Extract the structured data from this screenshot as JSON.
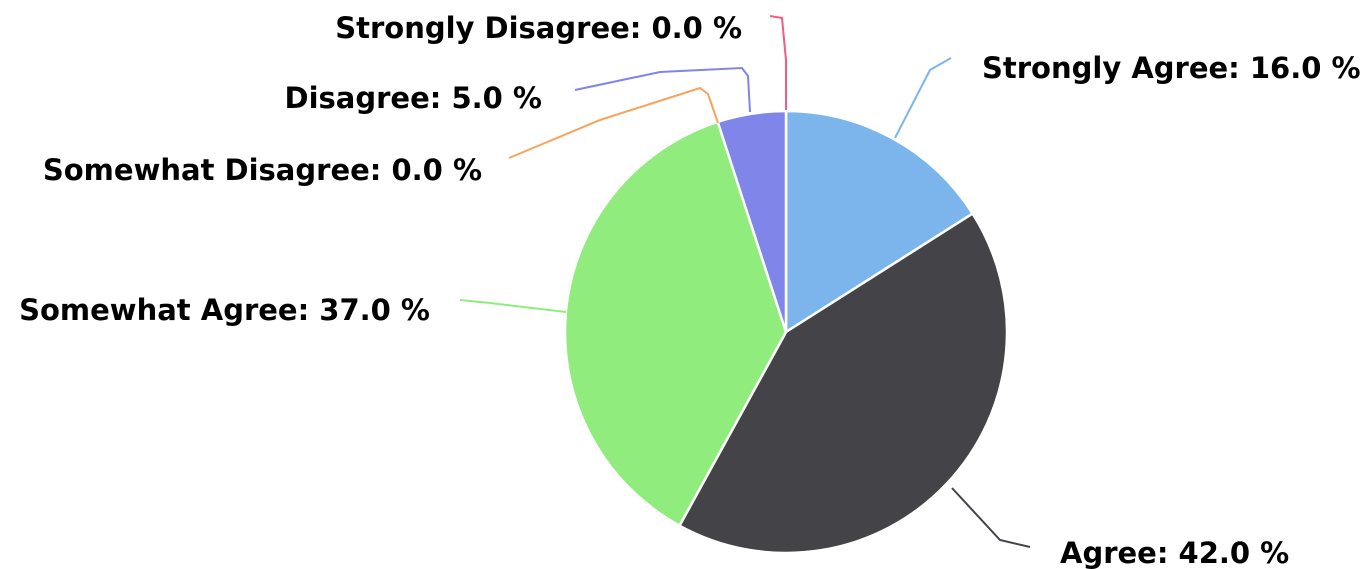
{
  "chart_data": {
    "type": "pie",
    "title": "",
    "slices": [
      {
        "label": "Strongly Agree: 16.0 %",
        "name": "Strongly Agree",
        "value": 16.0,
        "color": "#7cb5ec"
      },
      {
        "label": "Agree: 42.0 %",
        "name": "Agree",
        "value": 42.0,
        "color": "#434348"
      },
      {
        "label": "Somewhat Agree: 37.0 %",
        "name": "Somewhat Agree",
        "value": 37.0,
        "color": "#90ed7d"
      },
      {
        "label": "Somewhat Disagree: 0.0 %",
        "name": "Somewhat Disagree",
        "value": 0.0,
        "color": "#f7a35c"
      },
      {
        "label": "Disagree: 5.0 %",
        "name": "Disagree",
        "value": 5.0,
        "color": "#8085e9"
      },
      {
        "label": "Strongly Disagree: 0.0 %",
        "name": "Strongly Disagree",
        "value": 0.0,
        "color": "#f15c80"
      }
    ],
    "legend": "none",
    "start_angle": "top",
    "direction": "clockwise"
  }
}
